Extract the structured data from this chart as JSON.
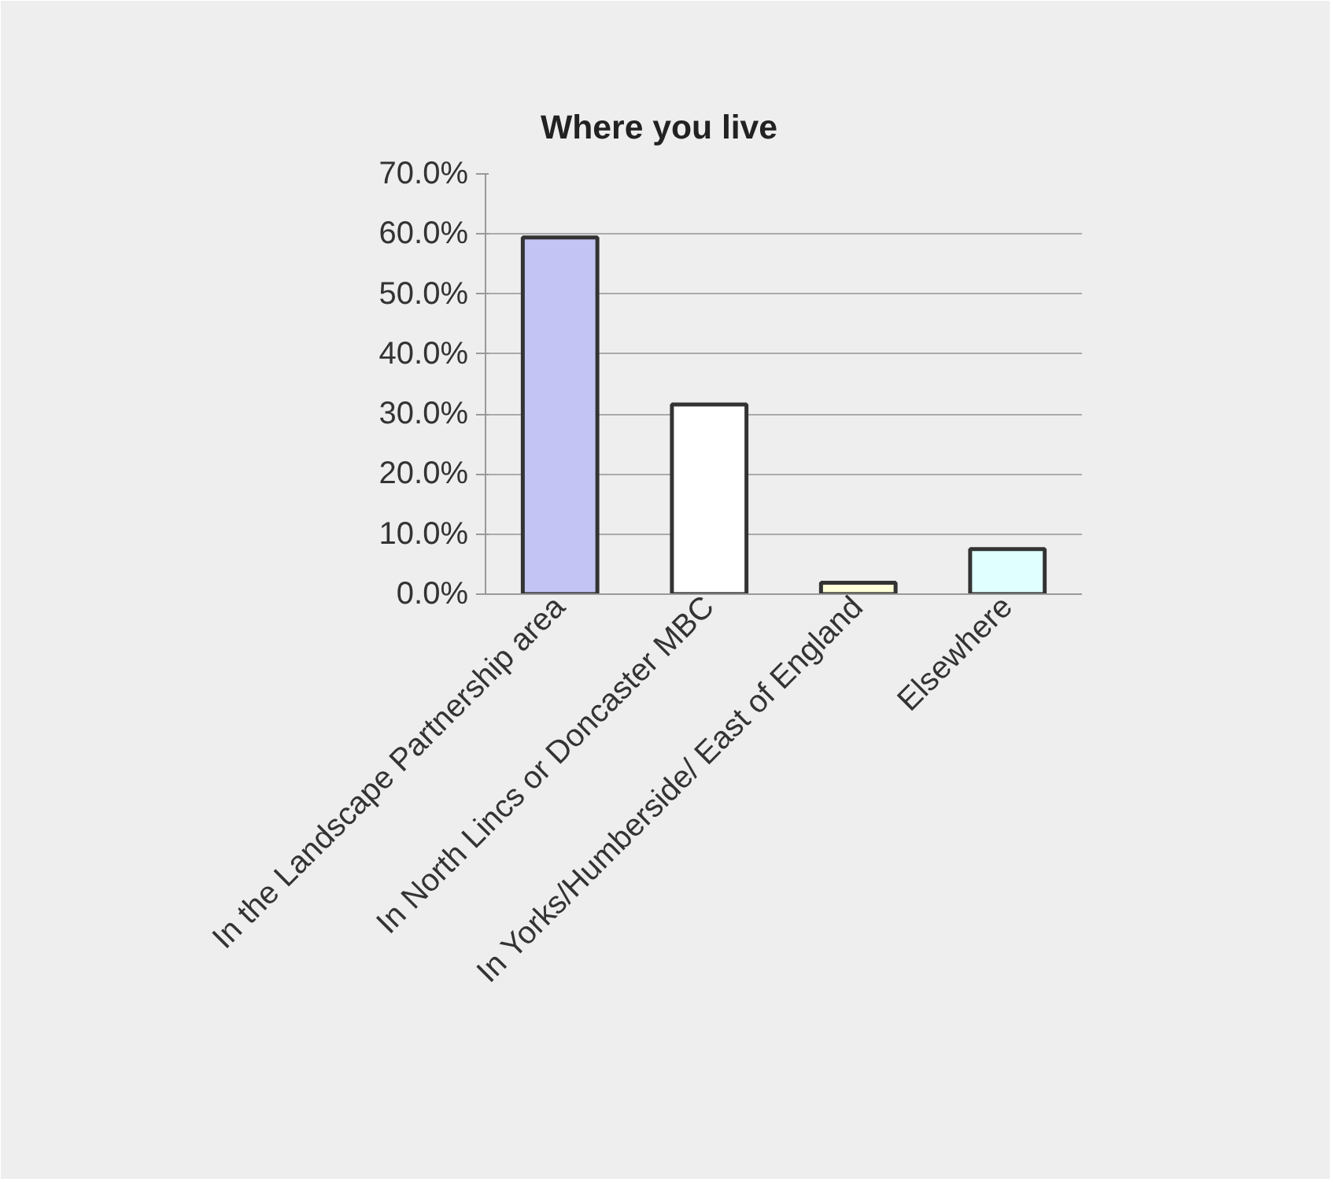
{
  "chart_data": {
    "type": "bar",
    "title": "Where you live",
    "categories": [
      "In the Landscape Partnership area",
      "In North Lincs or Doncaster MBC",
      "In Yorks/Humberside/ East of England",
      "Elsewhere"
    ],
    "values": [
      59.4,
      31.6,
      1.9,
      7.5
    ],
    "colors": [
      "#c4c4f4",
      "#ffffff",
      "#ffffd8",
      "#e0ffff"
    ],
    "ylim": [
      0,
      70
    ],
    "yticks": [
      {
        "value": 0,
        "label": "0.0%"
      },
      {
        "value": 10,
        "label": "10.0%"
      },
      {
        "value": 20,
        "label": "20.0%"
      },
      {
        "value": 30,
        "label": "30.0%"
      },
      {
        "value": 40,
        "label": "40.0%"
      },
      {
        "value": 50,
        "label": "50.0%"
      },
      {
        "value": 60,
        "label": "60.0%"
      },
      {
        "value": 70,
        "label": "70.0%"
      }
    ],
    "grid": "y"
  }
}
